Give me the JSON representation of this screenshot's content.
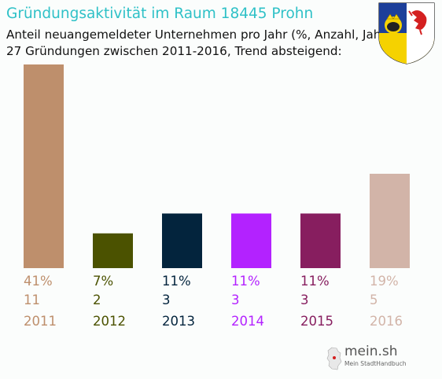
{
  "title": "Gründungsaktivität im Raum 18445 Prohn",
  "subtitle_line1": "Anteil neuangemeldeter Unternehmen pro Jahr (%, Anzahl, Jahr)",
  "subtitle_line2": "27 Gründungen zwischen 2011-2016, Trend absteigend:",
  "watermark": {
    "name": "mein.sh",
    "tagline": "Mein StadtHandbuch"
  },
  "crest_icon": "mecklenburg-vorpommern-coat-of-arms-icon",
  "chart_data": {
    "type": "bar",
    "categories": [
      "2011",
      "2012",
      "2013",
      "2014",
      "2015",
      "2016"
    ],
    "values": [
      41,
      7,
      11,
      11,
      11,
      19
    ],
    "percent_labels": [
      "41%",
      "7%",
      "11%",
      "11%",
      "11%",
      "19%"
    ],
    "counts": [
      11,
      2,
      3,
      3,
      3,
      5
    ],
    "colors": [
      "#be8f6c",
      "#4b5200",
      "#03243d",
      "#b322ff",
      "#871e5f",
      "#d2b4a8"
    ],
    "ylim": [
      0,
      41
    ],
    "grid": false,
    "legend": "none"
  }
}
